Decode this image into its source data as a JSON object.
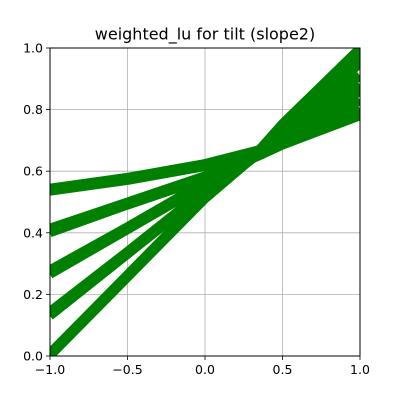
{
  "chart_data": {
    "type": "line",
    "title": "weighted_lu for tilt (slope2)",
    "xlabel": "",
    "ylabel": "",
    "xlim": [
      -1.0,
      1.0
    ],
    "ylim": [
      0.0,
      1.0
    ],
    "grid": true,
    "x_ticks": [
      {
        "value": -1.0,
        "label": "−1.0"
      },
      {
        "value": -0.5,
        "label": "−0.5"
      },
      {
        "value": 0.0,
        "label": "0.0"
      },
      {
        "value": 0.5,
        "label": "0.5"
      },
      {
        "value": 1.0,
        "label": "1.0"
      }
    ],
    "y_ticks": [
      {
        "value": 0.0,
        "label": "0.0"
      },
      {
        "value": 0.2,
        "label": "0.2"
      },
      {
        "value": 0.4,
        "label": "0.4"
      },
      {
        "value": 0.6,
        "label": "0.6"
      },
      {
        "value": 0.8,
        "label": "0.8"
      },
      {
        "value": 1.0,
        "label": "1.0"
      }
    ],
    "series_color": "#008000",
    "series": [
      {
        "x": [
          -1.0,
          -0.5,
          0.0,
          0.35,
          0.5,
          1.0
        ],
        "y": [
          0.535,
          0.57,
          0.615,
          0.66,
          0.685,
          0.78
        ]
      },
      {
        "x": [
          -1.0,
          -0.5,
          0.0,
          0.35,
          0.5,
          1.0
        ],
        "y": [
          0.545,
          0.58,
          0.625,
          0.67,
          0.695,
          0.8
        ]
      },
      {
        "x": [
          -1.0,
          -0.5,
          0.0,
          0.35,
          0.5,
          1.0
        ],
        "y": [
          0.4,
          0.49,
          0.575,
          0.65,
          0.685,
          0.83
        ]
      },
      {
        "x": [
          -1.0,
          -0.5,
          0.0,
          0.35,
          0.5,
          1.0
        ],
        "y": [
          0.415,
          0.5,
          0.585,
          0.66,
          0.7,
          0.86
        ]
      },
      {
        "x": [
          -1.0,
          -0.5,
          0.0,
          0.35,
          0.5,
          1.0
        ],
        "y": [
          0.265,
          0.41,
          0.555,
          0.655,
          0.7,
          0.88
        ]
      },
      {
        "x": [
          -1.0,
          -0.5,
          0.0,
          0.35,
          0.5,
          1.0
        ],
        "y": [
          0.28,
          0.42,
          0.565,
          0.665,
          0.715,
          0.91
        ]
      },
      {
        "x": [
          -1.0,
          -0.5,
          0.0,
          0.35,
          0.5,
          1.0
        ],
        "y": [
          0.13,
          0.33,
          0.53,
          0.655,
          0.72,
          0.95
        ]
      },
      {
        "x": [
          -1.0,
          -0.5,
          0.0,
          0.35,
          0.5,
          1.0
        ],
        "y": [
          0.145,
          0.34,
          0.54,
          0.665,
          0.735,
          0.97
        ]
      },
      {
        "x": [
          -1.0,
          -0.5,
          0.0,
          0.35,
          0.5,
          1.0
        ],
        "y": [
          0.0,
          0.255,
          0.51,
          0.66,
          0.74,
          0.99
        ]
      },
      {
        "x": [
          -1.0,
          -0.5,
          0.0,
          0.35,
          0.5,
          1.0
        ],
        "y": [
          0.01,
          0.265,
          0.52,
          0.67,
          0.755,
          1.0
        ]
      }
    ]
  }
}
